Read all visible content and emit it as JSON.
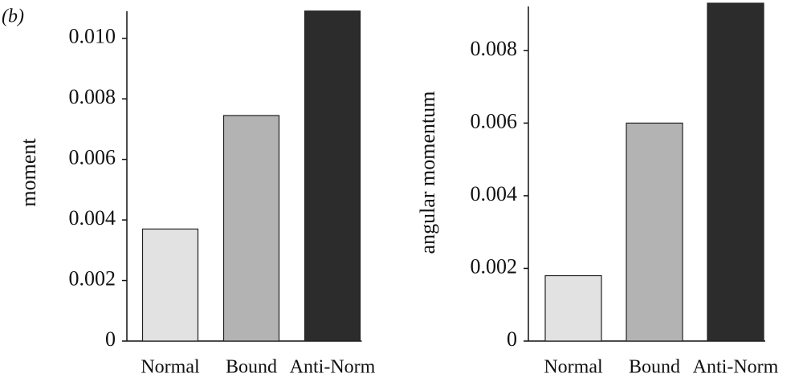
{
  "panel_label": "(b)",
  "chart_data": [
    {
      "type": "bar",
      "y_label": "moment",
      "categories": [
        "Normal",
        "Bound",
        "Anti-Norm"
      ],
      "values": [
        0.0037,
        0.00745,
        0.0109
      ],
      "colors": [
        "#e2e2e2",
        "#b3b3b3",
        "#2c2c2c"
      ],
      "ylim": [
        0,
        0.011
      ],
      "yticks": [
        0,
        0.002,
        0.004,
        0.006,
        0.008,
        {
          "value": 0.01,
          "label": "0.010"
        }
      ]
    },
    {
      "type": "bar",
      "y_label": "angular momentum",
      "categories": [
        "Normal",
        "Bound",
        "Anti-Norm"
      ],
      "values": [
        0.0018,
        0.006,
        0.0093
      ],
      "colors": [
        "#e2e2e2",
        "#b3b3b3",
        "#2c2c2c"
      ],
      "ylim": [
        0,
        0.0093
      ],
      "yticks": [
        0,
        0.002,
        0.004,
        0.006,
        0.008
      ]
    }
  ]
}
